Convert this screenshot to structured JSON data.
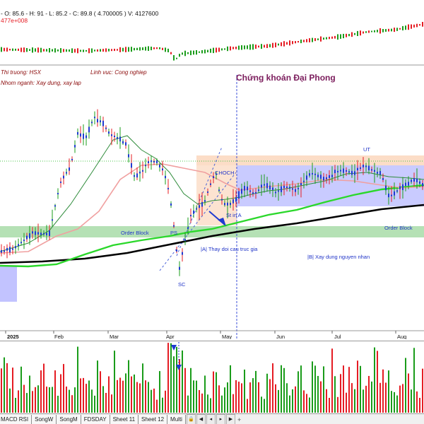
{
  "top_panel": {
    "ohlc_text": "- O: 85.6 - H: 91 - L: 85.2 - C: 89.8 ( 4.700005 ) V: 4127600",
    "sub_text": "477e+008"
  },
  "info": {
    "market": "Thi truong: HSX",
    "sector": "Linh vuc: Cong nghiep",
    "industry": "Nhom nganh: Xay dung, xay lap",
    "watermark": "Chứng khoán Đại Phong"
  },
  "annotations": {
    "choch": "CHOCH",
    "ut": "UT",
    "sc": "SC",
    "ps": "PS",
    "st_in_a": "St in A",
    "order_block_left": "Order Block",
    "order_block_right": "Order Block",
    "phase_a": "|A| Thay doi cau truc gia",
    "phase_b": "|B| Xay dung nguyen nhan"
  },
  "axis": {
    "months": [
      "2025",
      "Feb",
      "Mar",
      "Apr",
      "May",
      "Jun",
      "Jul",
      "Aug"
    ]
  },
  "tabs": [
    "MACD RSI",
    "SongW",
    "SongM",
    "FDSDAY",
    "Sheet 11",
    "Sheet 12",
    "Multi"
  ],
  "colors": {
    "up": "#1a9c1a",
    "down": "#e51c23",
    "candle_body": "#1f3bd1",
    "ema_black": "#000000",
    "ema_green": "#2bd82b",
    "ema_pink": "#f0a0a0",
    "ema_darkgreen": "#2e8b3a",
    "range_box": "#b7b9ff",
    "order_block": "#a8dca8",
    "supply_box": "#fbd7bd",
    "watermark": "#7b1c5c",
    "info_text": "#8b0a0a"
  }
}
